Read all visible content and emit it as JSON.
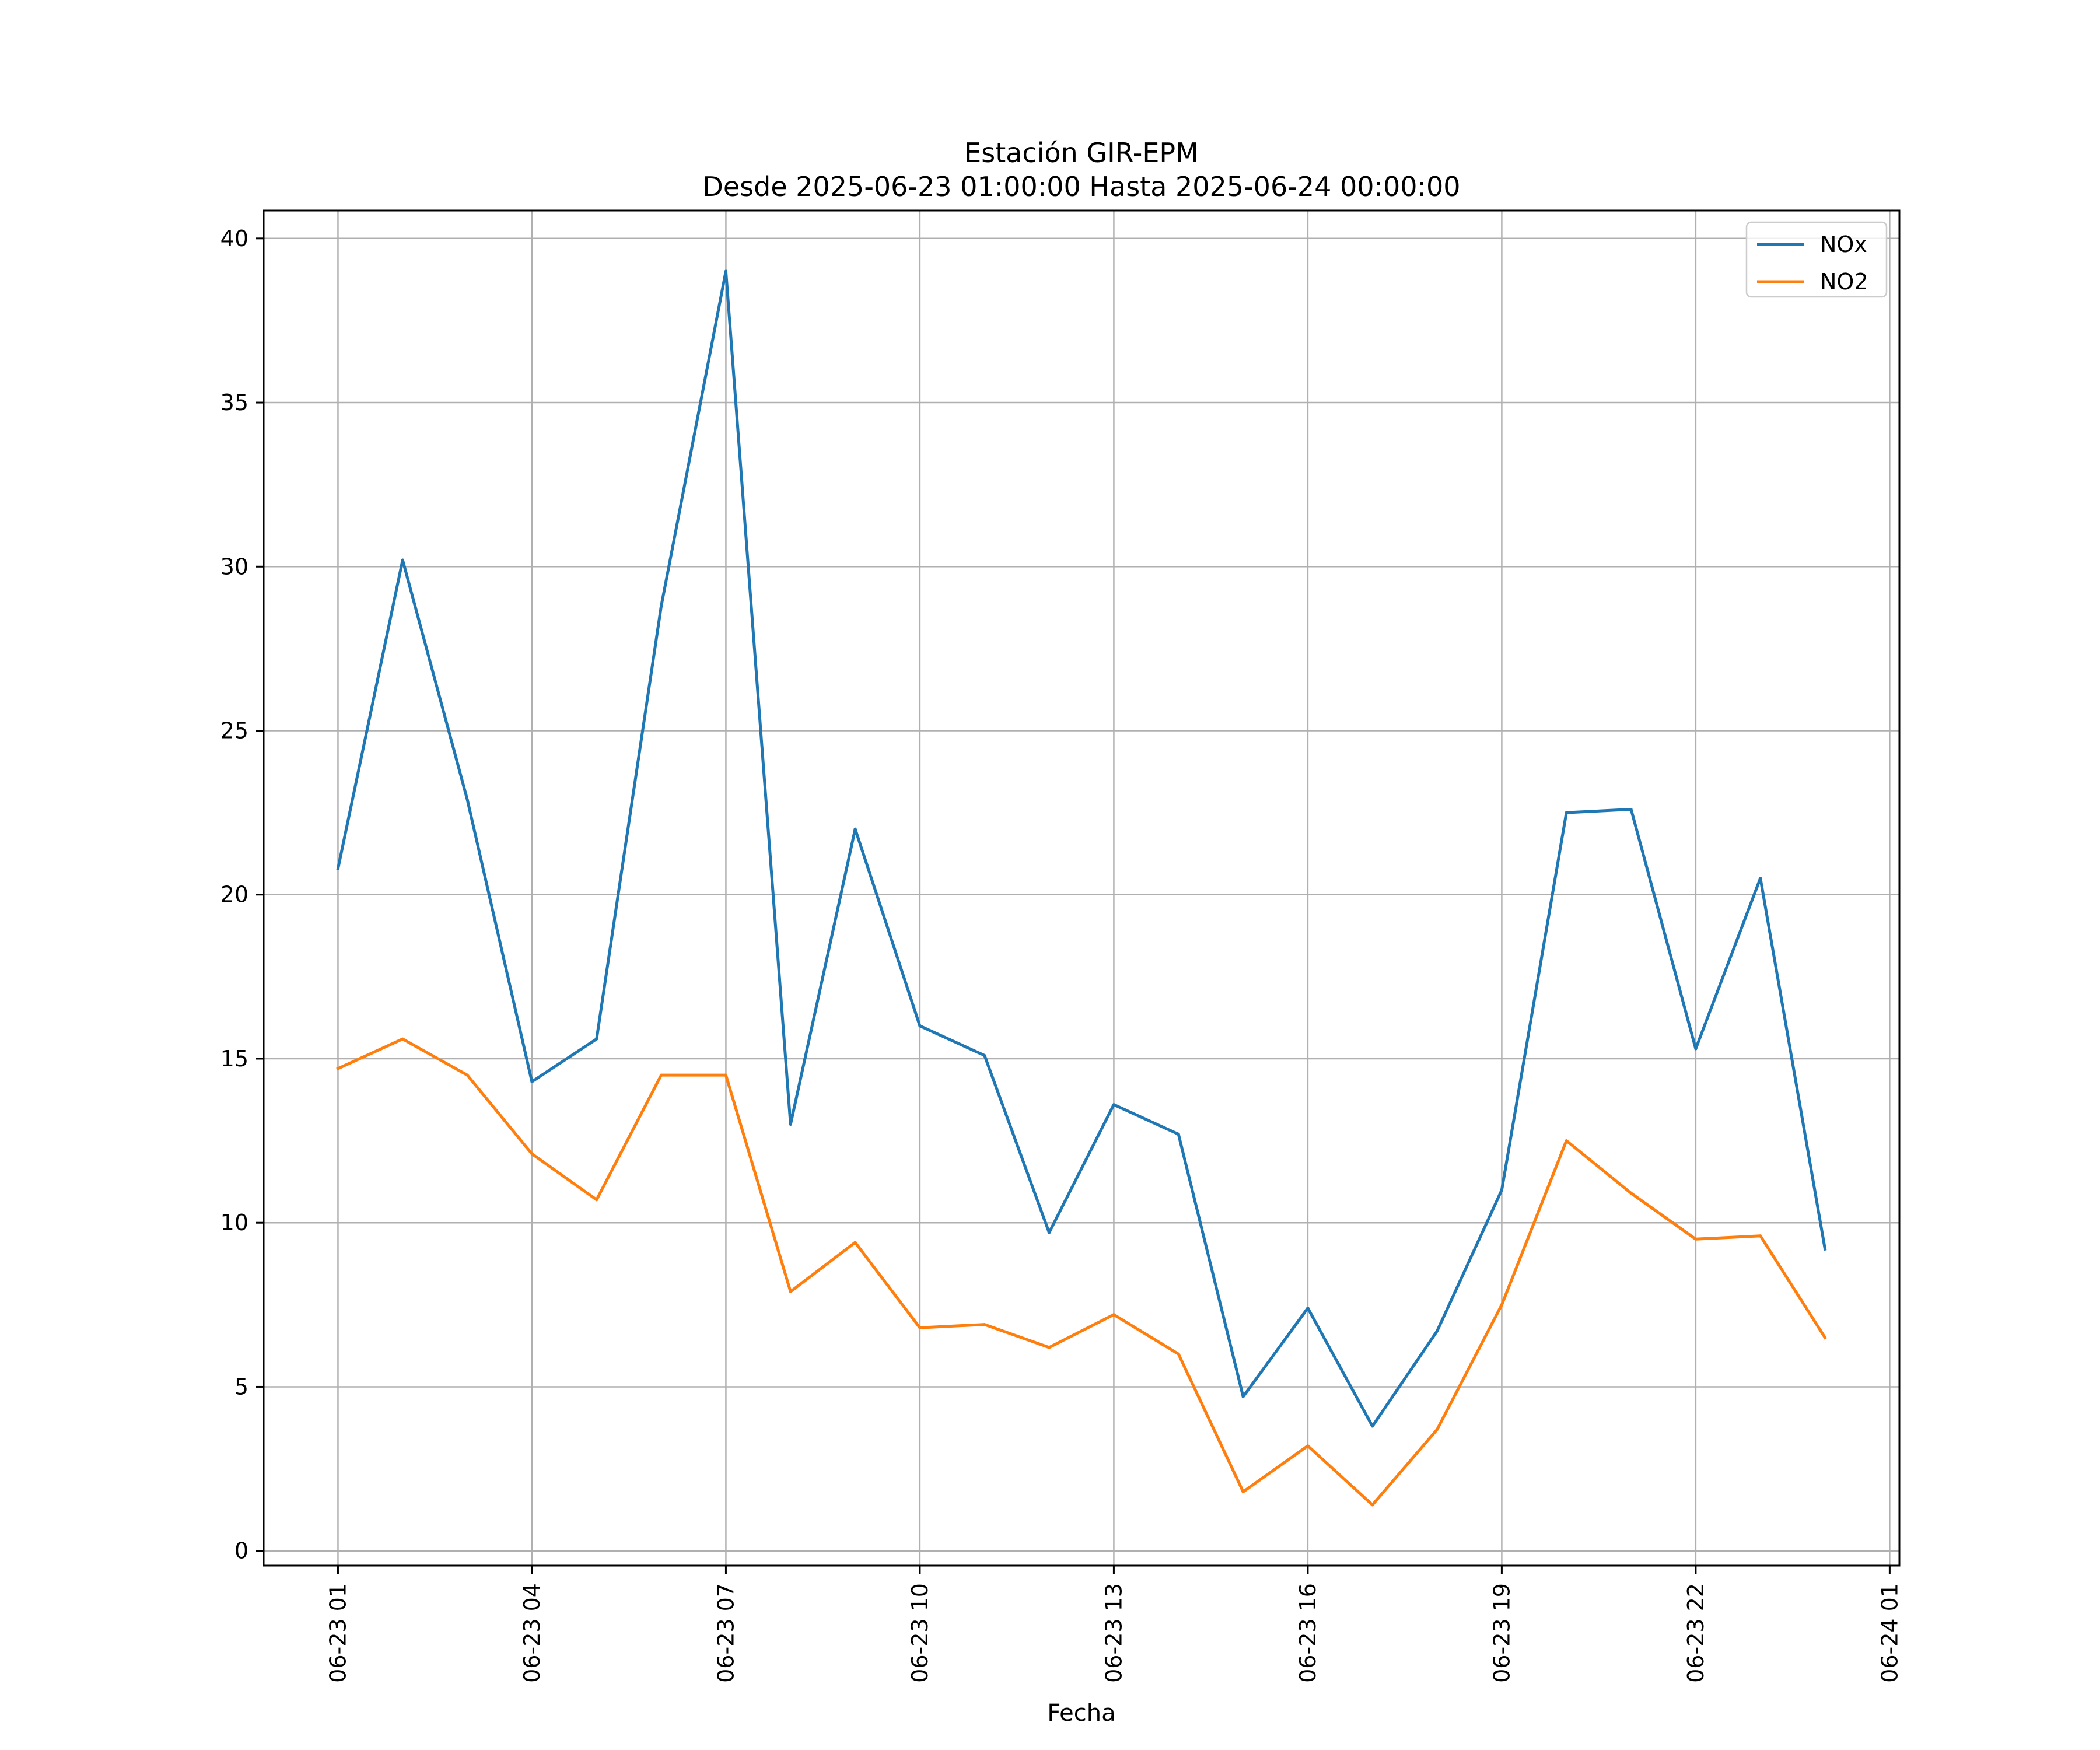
{
  "chart_data": {
    "type": "line",
    "title": "Estación GIR-EPM",
    "subtitle": "Desde 2025-06-23 01:00:00 Hasta 2025-06-24 00:00:00",
    "xlabel": "Fecha",
    "ylabel": "",
    "x": [
      "2025-06-23 01:00",
      "2025-06-23 02:00",
      "2025-06-23 03:00",
      "2025-06-23 04:00",
      "2025-06-23 05:00",
      "2025-06-23 06:00",
      "2025-06-23 07:00",
      "2025-06-23 08:00",
      "2025-06-23 09:00",
      "2025-06-23 10:00",
      "2025-06-23 11:00",
      "2025-06-23 12:00",
      "2025-06-23 13:00",
      "2025-06-23 14:00",
      "2025-06-23 15:00",
      "2025-06-23 16:00",
      "2025-06-23 17:00",
      "2025-06-23 18:00",
      "2025-06-23 19:00",
      "2025-06-23 20:00",
      "2025-06-23 21:00",
      "2025-06-23 22:00",
      "2025-06-23 23:00",
      "2025-06-24 00:00"
    ],
    "series": [
      {
        "name": "NOx",
        "color": "#1f77b4",
        "values": [
          20.8,
          30.2,
          22.9,
          14.3,
          15.6,
          28.8,
          39.0,
          13.0,
          22.0,
          16.0,
          15.1,
          9.7,
          13.6,
          12.7,
          4.7,
          7.4,
          3.8,
          6.7,
          11.0,
          22.5,
          22.6,
          15.3,
          20.5,
          9.2
        ]
      },
      {
        "name": "NO2",
        "color": "#ff7f0e",
        "values": [
          14.7,
          15.6,
          14.5,
          12.1,
          10.7,
          14.5,
          14.5,
          7.9,
          9.4,
          6.8,
          6.9,
          6.2,
          7.2,
          6.0,
          1.8,
          3.2,
          1.4,
          3.7,
          7.5,
          12.5,
          10.9,
          9.5,
          9.6,
          6.5
        ]
      }
    ],
    "xticks": [
      {
        "label": "06-23 01",
        "hour": 0
      },
      {
        "label": "06-23 04",
        "hour": 3
      },
      {
        "label": "06-23 07",
        "hour": 6
      },
      {
        "label": "06-23 10",
        "hour": 9
      },
      {
        "label": "06-23 13",
        "hour": 12
      },
      {
        "label": "06-23 16",
        "hour": 15
      },
      {
        "label": "06-23 19",
        "hour": 18
      },
      {
        "label": "06-23 22",
        "hour": 21
      },
      {
        "label": "06-24 01",
        "hour": 24
      }
    ],
    "yticks": [
      0,
      5,
      10,
      15,
      20,
      25,
      30,
      35,
      40
    ],
    "xlim": [
      "2025-06-22 23:51",
      "2025-06-24 01:09"
    ],
    "ylim": [
      -0.45,
      40.85
    ],
    "grid": true,
    "legend_position": "top-right"
  }
}
